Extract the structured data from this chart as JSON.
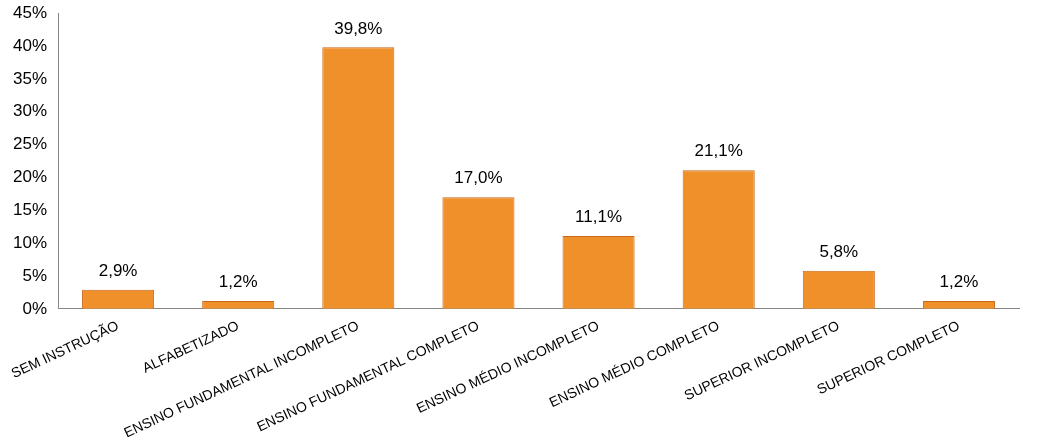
{
  "chart_data": {
    "type": "bar",
    "categories": [
      "SEM INSTRUÇÃO",
      "ALFABETIZADO",
      "ENSINO FUNDAMENTAL INCOMPLETO",
      "ENSINO FUNDAMENTAL COMPLETO",
      "ENSINO MÉDIO INCOMPLETO",
      "ENSINO MÉDIO COMPLETO",
      "SUPERIOR INCOMPLETO",
      "SUPERIOR COMPLETO"
    ],
    "values": [
      2.9,
      1.2,
      39.8,
      17.0,
      11.1,
      21.1,
      5.8,
      1.2
    ],
    "value_labels": [
      "2,9%",
      "1,2%",
      "39,8%",
      "17,0%",
      "11,1%",
      "21,1%",
      "5,8%",
      "1,2%"
    ],
    "color": "#f0902a",
    "ylim": [
      0,
      45
    ],
    "yticks": [
      {
        "value": 0,
        "label": "0%"
      },
      {
        "value": 5,
        "label": "5%"
      },
      {
        "value": 10,
        "label": "10%"
      },
      {
        "value": 15,
        "label": "15%"
      },
      {
        "value": 20,
        "label": "20%"
      },
      {
        "value": 25,
        "label": "25%"
      },
      {
        "value": 30,
        "label": "30%"
      },
      {
        "value": 35,
        "label": "35%"
      },
      {
        "value": 40,
        "label": "40%"
      },
      {
        "value": 45,
        "label": "45%"
      }
    ],
    "grid": false,
    "legend": false
  }
}
